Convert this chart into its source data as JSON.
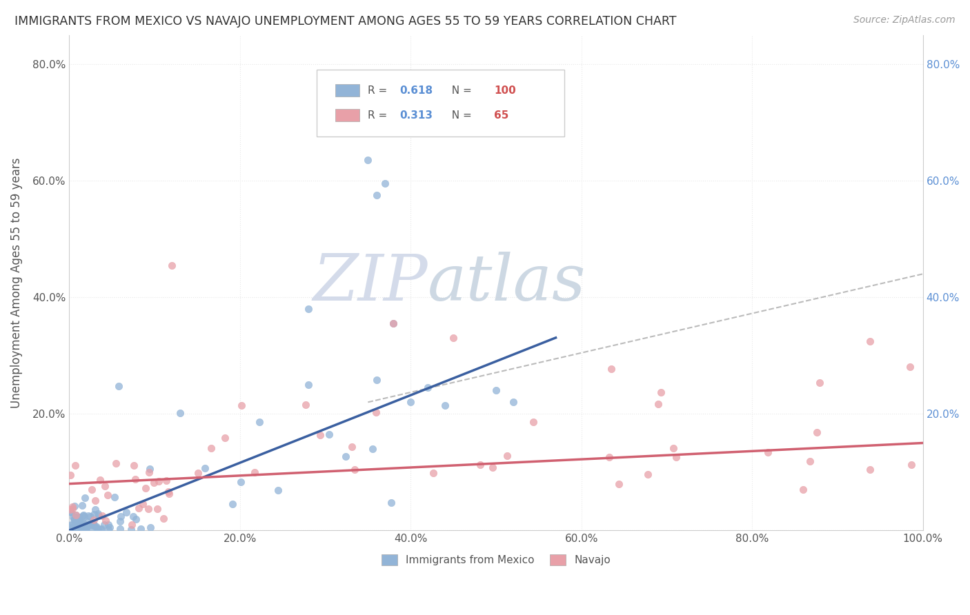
{
  "title": "IMMIGRANTS FROM MEXICO VS NAVAJO UNEMPLOYMENT AMONG AGES 55 TO 59 YEARS CORRELATION CHART",
  "source": "Source: ZipAtlas.com",
  "ylabel": "Unemployment Among Ages 55 to 59 years",
  "xlim": [
    0.0,
    1.0
  ],
  "ylim": [
    0.0,
    0.85
  ],
  "xticks": [
    0.0,
    0.2,
    0.4,
    0.6,
    0.8,
    1.0
  ],
  "xticklabels": [
    "0.0%",
    "20.0%",
    "40.0%",
    "60.0%",
    "80.0%",
    "100.0%"
  ],
  "yticks": [
    0.0,
    0.2,
    0.4,
    0.6,
    0.8
  ],
  "yticklabels": [
    "",
    "20.0%",
    "40.0%",
    "60.0%",
    "80.0%"
  ],
  "right_yticks": [
    0.2,
    0.4,
    0.6,
    0.8
  ],
  "right_yticklabels": [
    "20.0%",
    "40.0%",
    "60.0%",
    "80.0%"
  ],
  "blue_color": "#92b4d7",
  "pink_color": "#e8a0a8",
  "blue_line_color": "#3a5fa0",
  "pink_line_color": "#d06070",
  "gray_line_color": "#aaaaaa",
  "legend_blue_label": "Immigrants from Mexico",
  "legend_pink_label": "Navajo",
  "R_blue": 0.618,
  "N_blue": 100,
  "R_pink": 0.313,
  "N_pink": 65,
  "watermark_zip": "ZIP",
  "watermark_atlas": "atlas",
  "background_color": "#ffffff",
  "grid_color": "#e8e8e8"
}
